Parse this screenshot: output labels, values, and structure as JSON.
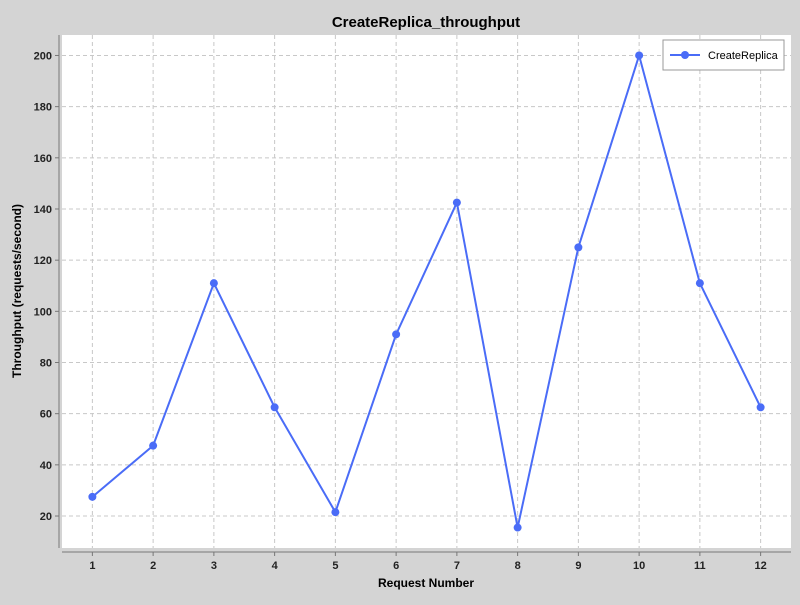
{
  "chart_data": {
    "type": "line",
    "title": "CreateReplica_throughput",
    "xlabel": "Request Number",
    "ylabel": "Throughput (requests/second)",
    "x": [
      1,
      2,
      3,
      4,
      5,
      6,
      7,
      8,
      9,
      10,
      11,
      12
    ],
    "series": [
      {
        "name": "CreateReplica",
        "values": [
          27.5,
          47.5,
          111,
          62.5,
          21.5,
          91,
          142.5,
          15.5,
          125,
          200,
          111,
          62.5
        ]
      }
    ],
    "xlim": [
      0.5,
      12.5
    ],
    "ylim": [
      7.5,
      208
    ],
    "xticks": [
      "1",
      "2",
      "3",
      "4",
      "5",
      "6",
      "7",
      "8",
      "9",
      "10",
      "11",
      "12"
    ],
    "yticks": [
      "20",
      "40",
      "60",
      "80",
      "100",
      "120",
      "140",
      "160",
      "180",
      "200"
    ],
    "grid": true,
    "legend_position": "top-right",
    "colors": {
      "series": "#4a6cf7",
      "plot_bg": "#ffffff",
      "page_bg": "#d4d4d4",
      "grid": "#c8c8c8"
    }
  }
}
